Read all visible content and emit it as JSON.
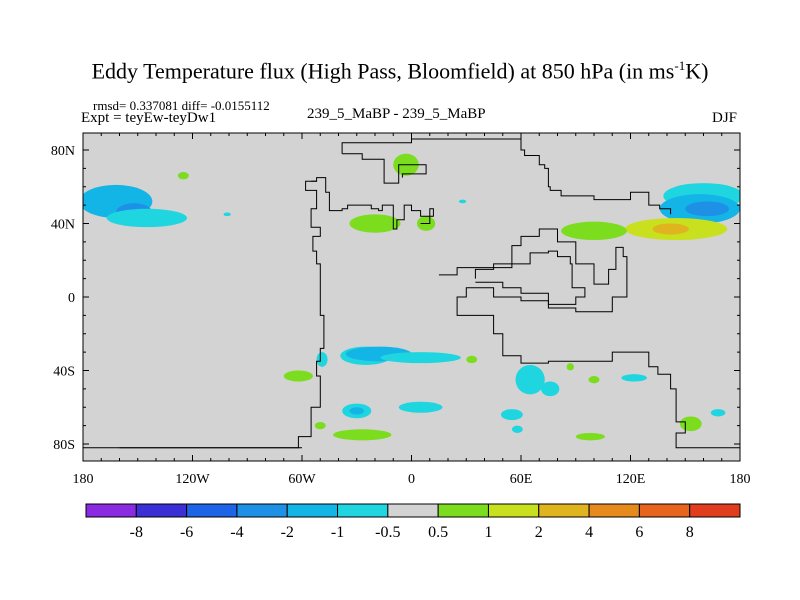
{
  "chart_data": {
    "type": "heatmap",
    "title_main": "Eddy Temperature flux (High Pass, Bloomfield) at 850 hPa (in ms",
    "title_sup": "-1",
    "title_end": "K)",
    "stats_text": "rmsd= 0.337081  diff= -0.0155112",
    "experiment_label": "Expt = teyEw-teyDw1",
    "center_label": "239_5_MaBP - 239_5_MaBP",
    "season": "DJF",
    "x_ticks": [
      {
        "value": -180,
        "label": "180"
      },
      {
        "value": -120,
        "label": "120W"
      },
      {
        "value": -60,
        "label": "60W"
      },
      {
        "value": 0,
        "label": "0"
      },
      {
        "value": 60,
        "label": "60E"
      },
      {
        "value": 120,
        "label": "120E"
      },
      {
        "value": 180,
        "label": "180"
      }
    ],
    "y_ticks": [
      {
        "value": 80,
        "label": "80N"
      },
      {
        "value": 40,
        "label": "40N"
      },
      {
        "value": 0,
        "label": "0"
      },
      {
        "value": -40,
        "label": "40S"
      },
      {
        "value": -80,
        "label": "80S"
      }
    ],
    "xlim": [
      -180,
      180
    ],
    "ylim": [
      -90,
      90
    ],
    "background_color": "#d3d3d3",
    "colorbar": {
      "labels": [
        "-8",
        "-6",
        "-4",
        "-2",
        "-1",
        "-0.5",
        "0.5",
        "1",
        "2",
        "4",
        "6",
        "8"
      ],
      "colors": [
        "#8a2be2",
        "#3b2fd6",
        "#1e64e6",
        "#1e90e6",
        "#13b4e6",
        "#1fd6e0",
        "#d3d3d3",
        "#7cdc1e",
        "#c8e01e",
        "#e0b41e",
        "#e68a1e",
        "#e6641e",
        "#e03c1e"
      ]
    },
    "patches": [
      {
        "lon": -162,
        "lat": 52,
        "rx": 20,
        "ry": 9,
        "value": -1.2
      },
      {
        "lon": -152,
        "lat": 46,
        "rx": 10,
        "ry": 5,
        "value": -2.5
      },
      {
        "lon": -145,
        "lat": 43,
        "rx": 22,
        "ry": 5,
        "value": -0.8
      },
      {
        "lon": 160,
        "lat": 55,
        "rx": 22,
        "ry": 7,
        "value": -0.8
      },
      {
        "lon": 158,
        "lat": 48,
        "rx": 22,
        "ry": 8,
        "value": -1.5
      },
      {
        "lon": 162,
        "lat": 48,
        "rx": 12,
        "ry": 4,
        "value": -3
      },
      {
        "lon": 145,
        "lat": 37,
        "rx": 28,
        "ry": 6,
        "value": 1.2
      },
      {
        "lon": 142,
        "lat": 37,
        "rx": 10,
        "ry": 3,
        "value": 2
      },
      {
        "lon": 100,
        "lat": 36,
        "rx": 18,
        "ry": 5,
        "value": 0.8
      },
      {
        "lon": -3,
        "lat": 72,
        "rx": 7,
        "ry": 6,
        "value": 0.8
      },
      {
        "lon": -20,
        "lat": 40,
        "rx": 14,
        "ry": 5,
        "value": 0.8
      },
      {
        "lon": 8,
        "lat": 40,
        "rx": 5,
        "ry": 4,
        "value": 0.8
      },
      {
        "lon": -125,
        "lat": 66,
        "rx": 3,
        "ry": 2,
        "value": 0.8
      },
      {
        "lon": -101,
        "lat": 45,
        "rx": 2,
        "ry": 1,
        "value": -0.8
      },
      {
        "lon": 28,
        "lat": 52,
        "rx": 2,
        "ry": 1,
        "value": -0.8
      },
      {
        "lon": -25,
        "lat": -32,
        "rx": 14,
        "ry": 5,
        "value": -0.8
      },
      {
        "lon": -18,
        "lat": -31,
        "rx": 18,
        "ry": 4,
        "value": -1.5
      },
      {
        "lon": 5,
        "lat": -33,
        "rx": 22,
        "ry": 3,
        "value": -0.8
      },
      {
        "lon": -49,
        "lat": -34,
        "rx": 3,
        "ry": 4,
        "value": -0.8
      },
      {
        "lon": 65,
        "lat": -45,
        "rx": 8,
        "ry": 8,
        "value": -0.8
      },
      {
        "lon": 76,
        "lat": -50,
        "rx": 5,
        "ry": 4,
        "value": -0.8
      },
      {
        "lon": -62,
        "lat": -43,
        "rx": 8,
        "ry": 3,
        "value": 0.8
      },
      {
        "lon": 33,
        "lat": -34,
        "rx": 3,
        "ry": 2,
        "value": 0.8
      },
      {
        "lon": 87,
        "lat": -38,
        "rx": 2,
        "ry": 2,
        "value": 0.8
      },
      {
        "lon": 100,
        "lat": -45,
        "rx": 3,
        "ry": 2,
        "value": 0.8
      },
      {
        "lon": 122,
        "lat": -44,
        "rx": 7,
        "ry": 2,
        "value": -0.8
      },
      {
        "lon": -30,
        "lat": -62,
        "rx": 8,
        "ry": 4,
        "value": -0.8
      },
      {
        "lon": -30,
        "lat": -62,
        "rx": 4,
        "ry": 2,
        "value": -1.5
      },
      {
        "lon": 5,
        "lat": -60,
        "rx": 12,
        "ry": 3,
        "value": -0.8
      },
      {
        "lon": 55,
        "lat": -64,
        "rx": 6,
        "ry": 3,
        "value": -0.8
      },
      {
        "lon": 58,
        "lat": -72,
        "rx": 3,
        "ry": 2,
        "value": -0.8
      },
      {
        "lon": -50,
        "lat": -70,
        "rx": 3,
        "ry": 2,
        "value": 0.8
      },
      {
        "lon": -27,
        "lat": -75,
        "rx": 16,
        "ry": 3,
        "value": 0.8
      },
      {
        "lon": 98,
        "lat": -76,
        "rx": 8,
        "ry": 2,
        "value": 0.8
      },
      {
        "lon": 153,
        "lat": -69,
        "rx": 6,
        "ry": 4,
        "value": 0.8
      },
      {
        "lon": 168,
        "lat": -63,
        "rx": 4,
        "ry": 2,
        "value": -0.8
      }
    ],
    "outlines": [
      [
        [
          -180,
          -82
        ],
        [
          -62,
          -82
        ],
        [
          -62,
          -76
        ],
        [
          -55,
          -76
        ],
        [
          -55,
          -60
        ],
        [
          -50,
          -60
        ],
        [
          -50,
          -43
        ],
        [
          -52,
          -43
        ],
        [
          -52,
          -35
        ],
        [
          -50,
          -35
        ],
        [
          -50,
          -28
        ],
        [
          -48,
          -28
        ],
        [
          -48,
          -10
        ],
        [
          -50,
          -10
        ],
        [
          -50,
          0
        ],
        [
          -50,
          18
        ],
        [
          -52,
          18
        ],
        [
          -52,
          25
        ],
        [
          -54,
          25
        ],
        [
          -54,
          33
        ],
        [
          -50,
          33
        ],
        [
          -50,
          38
        ],
        [
          -55,
          38
        ],
        [
          -55,
          48
        ],
        [
          -52,
          48
        ],
        [
          -52,
          58
        ],
        [
          -58,
          58
        ],
        [
          -58,
          63
        ],
        [
          -52,
          63
        ],
        [
          -52,
          65
        ],
        [
          -47,
          65
        ],
        [
          -47,
          57
        ],
        [
          -45,
          57
        ],
        [
          -45,
          47
        ],
        [
          -38,
          47
        ],
        [
          -38,
          48
        ],
        [
          -35,
          48
        ],
        [
          -35,
          50
        ],
        [
          -22,
          50
        ],
        [
          -22,
          48
        ],
        [
          -18,
          48
        ],
        [
          -18,
          47
        ],
        [
          -16,
          47
        ],
        [
          -16,
          50
        ],
        [
          -10,
          50
        ],
        [
          -10,
          37
        ],
        [
          -8,
          37
        ],
        [
          -8,
          42
        ],
        [
          -4,
          42
        ],
        [
          -4,
          50
        ],
        [
          0,
          50
        ],
        [
          0,
          47
        ],
        [
          5,
          47
        ],
        [
          5,
          44
        ],
        [
          10,
          44
        ],
        [
          10,
          48
        ],
        [
          12,
          48
        ],
        [
          12,
          44
        ],
        [
          10,
          44
        ],
        [
          10,
          40
        ],
        [
          5,
          40
        ]
      ],
      [
        [
          -38,
          78
        ],
        [
          -38,
          84
        ],
        [
          0,
          84
        ],
        [
          0,
          86
        ],
        [
          60,
          86
        ],
        [
          60,
          80
        ],
        [
          62,
          80
        ],
        [
          62,
          77
        ],
        [
          70,
          77
        ],
        [
          70,
          72
        ],
        [
          73,
          72
        ],
        [
          73,
          70
        ],
        [
          75,
          70
        ],
        [
          75,
          60
        ],
        [
          76,
          60
        ],
        [
          76,
          58
        ],
        [
          82,
          58
        ],
        [
          82,
          55
        ],
        [
          100,
          55
        ],
        [
          100,
          53
        ],
        [
          120,
          53
        ],
        [
          120,
          57
        ],
        [
          130,
          57
        ],
        [
          130,
          50
        ],
        [
          136,
          50
        ],
        [
          136,
          48
        ],
        [
          142,
          48
        ],
        [
          142,
          45
        ]
      ],
      [
        [
          -38,
          78
        ],
        [
          -27,
          78
        ],
        [
          -27,
          75
        ],
        [
          -15,
          75
        ],
        [
          -15,
          62
        ],
        [
          -7,
          62
        ],
        [
          -7,
          72
        ],
        [
          8,
          72
        ],
        [
          8,
          67
        ],
        [
          -5,
          67
        ],
        [
          -5,
          65
        ]
      ],
      [
        [
          -55,
          63
        ],
        [
          -52,
          63
        ]
      ],
      [
        [
          15,
          12
        ],
        [
          25,
          12
        ],
        [
          25,
          16
        ],
        [
          55,
          16
        ],
        [
          55,
          28
        ],
        [
          60,
          28
        ],
        [
          60,
          33
        ],
        [
          70,
          33
        ],
        [
          70,
          37
        ],
        [
          80,
          37
        ],
        [
          80,
          30
        ],
        [
          90,
          30
        ],
        [
          90,
          18
        ],
        [
          100,
          18
        ],
        [
          100,
          7
        ],
        [
          108,
          7
        ],
        [
          108,
          15
        ],
        [
          112,
          15
        ],
        [
          112,
          27
        ],
        [
          116,
          27
        ],
        [
          116,
          22
        ],
        [
          118,
          22
        ],
        [
          118,
          0
        ],
        [
          110,
          0
        ],
        [
          110,
          -8
        ],
        [
          90,
          -8
        ],
        [
          90,
          -6
        ],
        [
          75,
          -6
        ],
        [
          75,
          -2
        ],
        [
          60,
          -2
        ],
        [
          60,
          0
        ],
        [
          50,
          0
        ],
        [
          45,
          0
        ],
        [
          45,
          5
        ],
        [
          35,
          5
        ],
        [
          30,
          5
        ],
        [
          30,
          0
        ],
        [
          25,
          0
        ],
        [
          25,
          -10
        ],
        [
          45,
          -10
        ],
        [
          45,
          -20
        ],
        [
          50,
          -20
        ],
        [
          50,
          -32
        ],
        [
          60,
          -32
        ],
        [
          60,
          -36
        ],
        [
          75,
          -36
        ],
        [
          75,
          -35
        ],
        [
          110,
          -35
        ],
        [
          110,
          -30
        ],
        [
          130,
          -30
        ],
        [
          130,
          -38
        ],
        [
          135,
          -38
        ],
        [
          135,
          -42
        ],
        [
          142,
          -42
        ],
        [
          142,
          -50
        ],
        [
          145,
          -50
        ],
        [
          145,
          -68
        ],
        [
          150,
          -68
        ],
        [
          150,
          -74
        ],
        [
          145,
          -74
        ],
        [
          145,
          -82
        ],
        [
          180,
          -82
        ]
      ],
      [
        [
          35,
          10
        ],
        [
          35,
          15
        ],
        [
          45,
          15
        ],
        [
          45,
          18
        ],
        [
          65,
          18
        ],
        [
          65,
          24
        ],
        [
          75,
          24
        ],
        [
          75,
          25
        ],
        [
          80,
          25
        ],
        [
          80,
          22
        ],
        [
          87,
          22
        ],
        [
          87,
          18
        ],
        [
          88,
          18
        ],
        [
          88,
          5
        ],
        [
          95,
          5
        ],
        [
          95,
          0
        ],
        [
          90,
          0
        ],
        [
          90,
          -4
        ],
        [
          75,
          -4
        ],
        [
          75,
          2
        ],
        [
          60,
          2
        ],
        [
          60,
          5
        ],
        [
          50,
          5
        ],
        [
          50,
          8
        ],
        [
          35,
          8
        ]
      ],
      [
        [
          -160,
          -82
        ],
        [
          -60,
          -82
        ]
      ]
    ]
  }
}
